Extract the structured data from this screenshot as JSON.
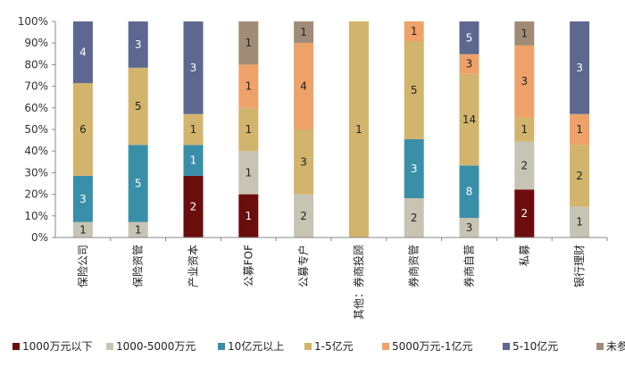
{
  "chart_data": {
    "type": "bar",
    "stacked": true,
    "percent_stacked": true,
    "categories": [
      "保险公司",
      "保险资管",
      "产业资本",
      "公募FOF",
      "公募专户",
      "其他：券商投顾",
      "券商资管",
      "券商自营",
      "私募",
      "银行理财"
    ],
    "series": [
      {
        "name": "1000万元以下",
        "color": "#6b0d0d",
        "values": [
          0,
          0,
          2,
          1,
          0,
          0,
          0,
          0,
          2,
          0
        ]
      },
      {
        "name": "1000-5000万元",
        "color": "#c8c4b3",
        "values": [
          1,
          1,
          0,
          1,
          2,
          0,
          2,
          3,
          2,
          1
        ]
      },
      {
        "name": "10亿元以上",
        "color": "#3a8fa8",
        "values": [
          3,
          5,
          1,
          0,
          0,
          0,
          3,
          8,
          0,
          0
        ]
      },
      {
        "name": "1-5亿元",
        "color": "#d2b46c",
        "values": [
          6,
          5,
          1,
          1,
          3,
          1,
          5,
          14,
          1,
          2
        ]
      },
      {
        "name": "5000万元-1亿元",
        "color": "#eea26a",
        "values": [
          0,
          0,
          0,
          1,
          4,
          0,
          1,
          3,
          3,
          1
        ]
      },
      {
        "name": "5-10亿元",
        "color": "#5c6890",
        "values": [
          4,
          3,
          3,
          0,
          0,
          0,
          0,
          5,
          0,
          3
        ]
      },
      {
        "name": "未参与",
        "color": "#a08c76",
        "values": [
          0,
          0,
          0,
          1,
          1,
          0,
          0,
          0,
          1,
          0
        ]
      }
    ],
    "ylim": [
      0,
      100
    ],
    "yticks": [
      "0%",
      "10%",
      "20%",
      "30%",
      "40%",
      "50%",
      "60%",
      "70%",
      "80%",
      "90%",
      "100%"
    ],
    "grid": false,
    "legend_position": "bottom"
  }
}
